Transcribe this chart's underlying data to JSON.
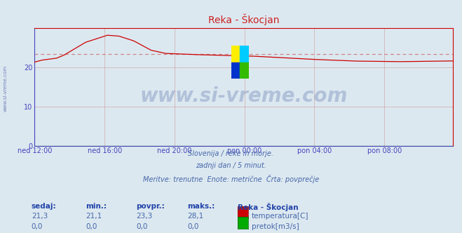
{
  "title": "Reka - Škocjan",
  "background_color": "#dce8f0",
  "plot_bg_color": "#dce8f0",
  "title_color": "#cc2222",
  "title_fontsize": 10,
  "line_color": "#cc0000",
  "pretok_color": "#008800",
  "avg_line_color": "#cc8888",
  "avg_line_value": 23.3,
  "grid_color": "#cc9999",
  "grid_alpha": 0.7,
  "axis_color": "#cc0000",
  "tick_label_color": "#4444bb",
  "xlim": [
    0,
    287
  ],
  "ylim": [
    0,
    30
  ],
  "yticks": [
    0,
    10,
    20
  ],
  "x_tick_labels": [
    "ned 12:00",
    "ned 16:00",
    "ned 20:00",
    "pon 00:00",
    "pon 04:00",
    "pon 08:00"
  ],
  "x_tick_positions": [
    0,
    48,
    96,
    144,
    192,
    240
  ],
  "watermark_text": "www.si-vreme.com",
  "watermark_color": "#1a3a8a",
  "side_text": "www.si-vreme.com",
  "side_text_color": "#5566aa",
  "subtitle_lines": [
    "Slovenija / reke in morje.",
    "zadnji dan / 5 minut.",
    "Meritve: trenutne  Enote: metrične  Črta: povprečje"
  ],
  "subtitle_color": "#4466aa",
  "legend_title": "Reka - Škocjan",
  "table_headers": [
    "sedaj:",
    "min.:",
    "povpr.:",
    "maks.:"
  ],
  "table_row1": [
    "21,3",
    "21,1",
    "23,3",
    "28,1"
  ],
  "table_row2": [
    "0,0",
    "0,0",
    "0,0",
    "0,0"
  ],
  "table_header_color": "#2244aa",
  "table_value_color": "#4466aa",
  "legend_items": [
    {
      "label": "temperatura[C]",
      "color": "#cc0000"
    },
    {
      "label": "pretok[m3/s]",
      "color": "#00aa00"
    }
  ],
  "logo_colors": {
    "top_left": "#ffee00",
    "top_right": "#00ccff",
    "bottom_left": "#0033cc",
    "bottom_right": "#33bb00"
  }
}
